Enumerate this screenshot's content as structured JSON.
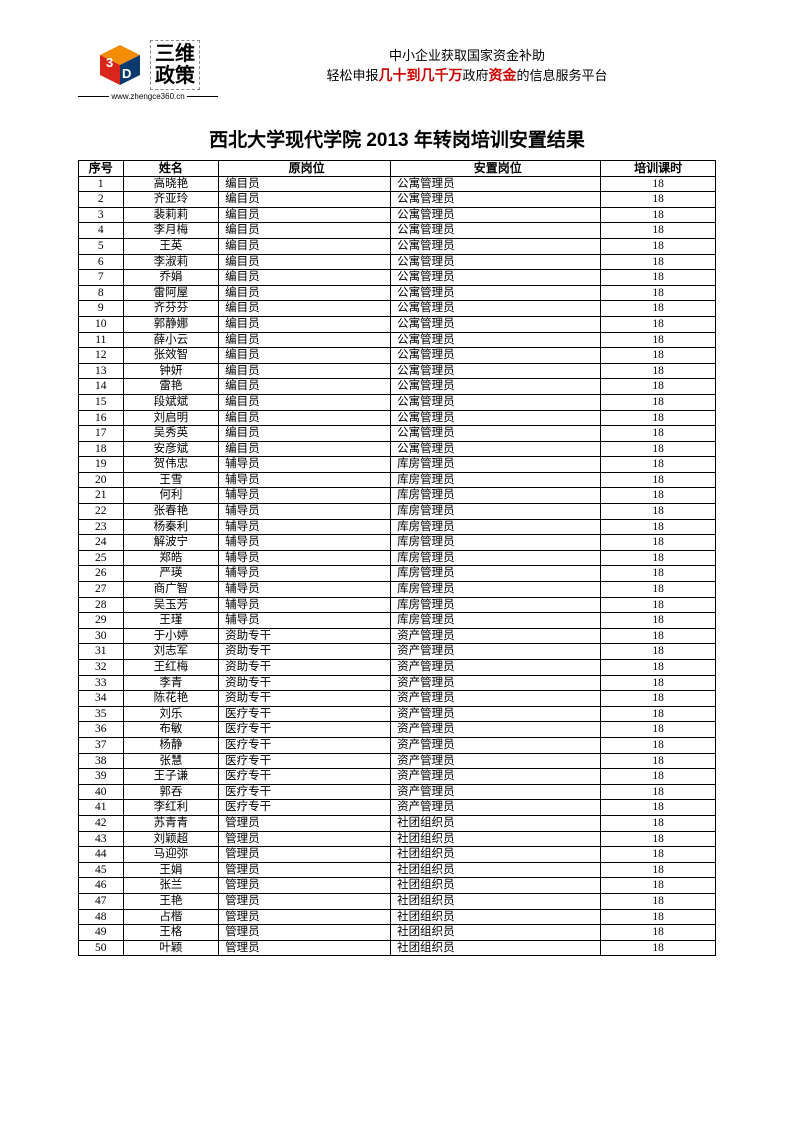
{
  "header": {
    "logo_text_line1": "三维",
    "logo_text_line2": "政策",
    "logo_url": "www.zhengce360.cn",
    "slogan_line1": "中小企业获取国家资金补助",
    "slogan_line2_a": "轻松申报",
    "slogan_line2_red1": "几十到几千万",
    "slogan_line2_b": "政府",
    "slogan_line2_red2": "资金",
    "slogan_line2_c": "的信息服务平台",
    "logo_red": "#d9261c",
    "logo_orange": "#f28c00",
    "logo_navy": "#0b3a6f"
  },
  "title": "西北大学现代学院 2013 年转岗培训安置结果",
  "table": {
    "columns": [
      "序号",
      "姓名",
      "原岗位",
      "安置岗位",
      "培训课时"
    ],
    "col_widths_pct": [
      7,
      15,
      27,
      33,
      18
    ],
    "header_fontsize": 12,
    "cell_fontsize": 11.5,
    "border_color": "#000000",
    "rows": [
      {
        "idx": 1,
        "name": "高晓艳",
        "orig": "编目员",
        "new": "公寓管理员",
        "hours": 18
      },
      {
        "idx": 2,
        "name": "齐亚玲",
        "orig": "编目员",
        "new": "公寓管理员",
        "hours": 18
      },
      {
        "idx": 3,
        "name": "裴莉莉",
        "orig": "编目员",
        "new": "公寓管理员",
        "hours": 18
      },
      {
        "idx": 4,
        "name": "李月梅",
        "orig": "编目员",
        "new": "公寓管理员",
        "hours": 18
      },
      {
        "idx": 5,
        "name": "王英",
        "orig": "编目员",
        "new": "公寓管理员",
        "hours": 18
      },
      {
        "idx": 6,
        "name": "李淑莉",
        "orig": "编目员",
        "new": "公寓管理员",
        "hours": 18
      },
      {
        "idx": 7,
        "name": "乔娟",
        "orig": "编目员",
        "new": "公寓管理员",
        "hours": 18
      },
      {
        "idx": 8,
        "name": "雷阿屋",
        "orig": "编目员",
        "new": "公寓管理员",
        "hours": 18
      },
      {
        "idx": 9,
        "name": "齐芬芬",
        "orig": "编目员",
        "new": "公寓管理员",
        "hours": 18
      },
      {
        "idx": 10,
        "name": "郭静娜",
        "orig": "编目员",
        "new": "公寓管理员",
        "hours": 18
      },
      {
        "idx": 11,
        "name": "薛小云",
        "orig": "编目员",
        "new": "公寓管理员",
        "hours": 18
      },
      {
        "idx": 12,
        "name": "张效智",
        "orig": "编目员",
        "new": "公寓管理员",
        "hours": 18
      },
      {
        "idx": 13,
        "name": "钟妍",
        "orig": "编目员",
        "new": "公寓管理员",
        "hours": 18
      },
      {
        "idx": 14,
        "name": "雷艳",
        "orig": "编目员",
        "new": "公寓管理员",
        "hours": 18
      },
      {
        "idx": 15,
        "name": "段斌斌",
        "orig": "编目员",
        "new": "公寓管理员",
        "hours": 18
      },
      {
        "idx": 16,
        "name": "刘启明",
        "orig": "编目员",
        "new": "公寓管理员",
        "hours": 18
      },
      {
        "idx": 17,
        "name": "吴秀英",
        "orig": "编目员",
        "new": "公寓管理员",
        "hours": 18
      },
      {
        "idx": 18,
        "name": "安彦斌",
        "orig": "编目员",
        "new": "公寓管理员",
        "hours": 18
      },
      {
        "idx": 19,
        "name": "贺伟忠",
        "orig": "辅导员",
        "new": "库房管理员",
        "hours": 18
      },
      {
        "idx": 20,
        "name": "王雪",
        "orig": "辅导员",
        "new": "库房管理员",
        "hours": 18
      },
      {
        "idx": 21,
        "name": "何利",
        "orig": "辅导员",
        "new": "库房管理员",
        "hours": 18
      },
      {
        "idx": 22,
        "name": "张春艳",
        "orig": "辅导员",
        "new": "库房管理员",
        "hours": 18
      },
      {
        "idx": 23,
        "name": "杨秦利",
        "orig": "辅导员",
        "new": "库房管理员",
        "hours": 18
      },
      {
        "idx": 24,
        "name": "解波宁",
        "orig": "辅导员",
        "new": "库房管理员",
        "hours": 18
      },
      {
        "idx": 25,
        "name": "郑皓",
        "orig": "辅导员",
        "new": "库房管理员",
        "hours": 18
      },
      {
        "idx": 26,
        "name": "严瑛",
        "orig": "辅导员",
        "new": "库房管理员",
        "hours": 18
      },
      {
        "idx": 27,
        "name": "商广智",
        "orig": "辅导员",
        "new": "库房管理员",
        "hours": 18
      },
      {
        "idx": 28,
        "name": "吴玉芳",
        "orig": "辅导员",
        "new": "库房管理员",
        "hours": 18
      },
      {
        "idx": 29,
        "name": "王瑾",
        "orig": "辅导员",
        "new": "库房管理员",
        "hours": 18
      },
      {
        "idx": 30,
        "name": "于小婷",
        "orig": "资助专干",
        "new": "资产管理员",
        "hours": 18
      },
      {
        "idx": 31,
        "name": "刘志军",
        "orig": "资助专干",
        "new": "资产管理员",
        "hours": 18
      },
      {
        "idx": 32,
        "name": "王红梅",
        "orig": "资助专干",
        "new": "资产管理员",
        "hours": 18
      },
      {
        "idx": 33,
        "name": "李青",
        "orig": "资助专干",
        "new": "资产管理员",
        "hours": 18
      },
      {
        "idx": 34,
        "name": "陈花艳",
        "orig": "资助专干",
        "new": "资产管理员",
        "hours": 18
      },
      {
        "idx": 35,
        "name": "刘乐",
        "orig": "医疗专干",
        "new": "资产管理员",
        "hours": 18
      },
      {
        "idx": 36,
        "name": "布敏",
        "orig": "医疗专干",
        "new": "资产管理员",
        "hours": 18
      },
      {
        "idx": 37,
        "name": "杨静",
        "orig": "医疗专干",
        "new": "资产管理员",
        "hours": 18
      },
      {
        "idx": 38,
        "name": "张慧",
        "orig": "医疗专干",
        "new": "资产管理员",
        "hours": 18
      },
      {
        "idx": 39,
        "name": "王子谦",
        "orig": "医疗专干",
        "new": "资产管理员",
        "hours": 18
      },
      {
        "idx": 40,
        "name": "郭吞",
        "orig": "医疗专干",
        "new": "资产管理员",
        "hours": 18
      },
      {
        "idx": 41,
        "name": "李红利",
        "orig": "医疗专干",
        "new": "资产管理员",
        "hours": 18
      },
      {
        "idx": 42,
        "name": "苏青青",
        "orig": "管理员",
        "new": "社团组织员",
        "hours": 18
      },
      {
        "idx": 43,
        "name": "刘颖超",
        "orig": "管理员",
        "new": "社团组织员",
        "hours": 18
      },
      {
        "idx": 44,
        "name": "马迎弥",
        "orig": "管理员",
        "new": "社团组织员",
        "hours": 18
      },
      {
        "idx": 45,
        "name": "王娟",
        "orig": "管理员",
        "new": "社团组织员",
        "hours": 18
      },
      {
        "idx": 46,
        "name": "张兰",
        "orig": "管理员",
        "new": "社团组织员",
        "hours": 18
      },
      {
        "idx": 47,
        "name": "王艳",
        "orig": "管理员",
        "new": "社团组织员",
        "hours": 18
      },
      {
        "idx": 48,
        "name": "占楷",
        "orig": "管理员",
        "new": "社团组织员",
        "hours": 18
      },
      {
        "idx": 49,
        "name": "王格",
        "orig": "管理员",
        "new": "社团组织员",
        "hours": 18
      },
      {
        "idx": 50,
        "name": "叶颖",
        "orig": "管理员",
        "new": "社团组织员",
        "hours": 18
      }
    ]
  }
}
